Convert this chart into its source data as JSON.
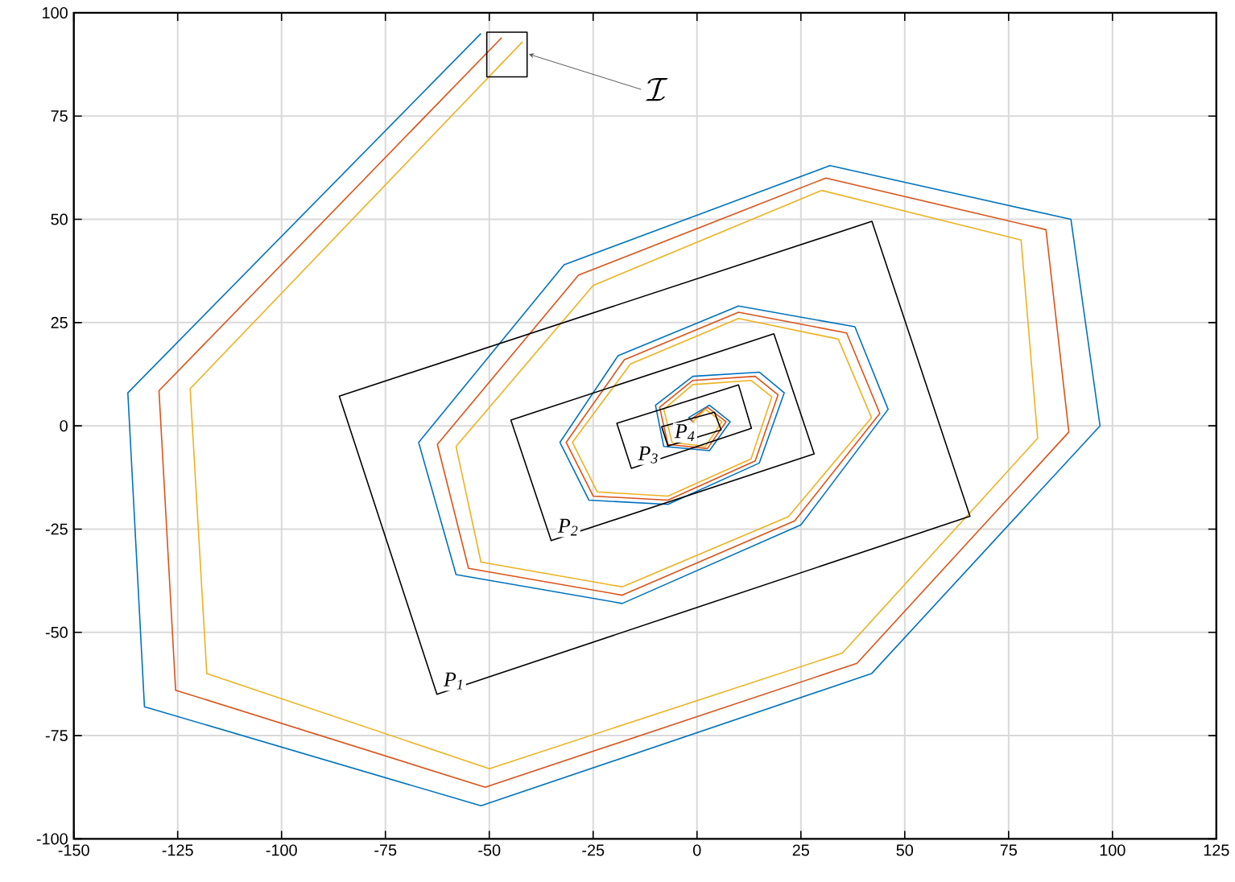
{
  "chart_data": {
    "type": "line",
    "xlim": [
      -150,
      125
    ],
    "ylim": [
      -100,
      100
    ],
    "xticks": [
      -150,
      -125,
      -100,
      -75,
      -50,
      -25,
      0,
      25,
      50,
      75,
      100,
      125
    ],
    "yticks": [
      -100,
      -75,
      -50,
      -25,
      0,
      25,
      50,
      75,
      100
    ],
    "grid": true,
    "series": [
      {
        "color": "#0072bd",
        "x": [
          -52,
          -137,
          -133,
          -52,
          42,
          97,
          90,
          32,
          -32,
          -67,
          -58,
          -18,
          25,
          46,
          38,
          10,
          -19,
          -33,
          -26,
          -7,
          15,
          21,
          15,
          -1,
          -10,
          -8,
          3,
          8,
          3,
          -2,
          0
        ],
        "values": [
          95,
          8,
          -68,
          -92,
          -60,
          0,
          50,
          63,
          39,
          -4,
          -36,
          -43,
          -24,
          4,
          24,
          29,
          17,
          -4,
          -18,
          -19,
          -9,
          8,
          13,
          12,
          5,
          -5,
          -6,
          1,
          5,
          2,
          0
        ]
      },
      {
        "color": "#d95319",
        "x": [
          -47,
          -129.5,
          -125.5,
          -51,
          38.5,
          89.5,
          84,
          31,
          -28.5,
          -62.5,
          -55,
          -18,
          23.5,
          44,
          36,
          10,
          -17.5,
          -31.5,
          -25,
          -7,
          14,
          19.5,
          14,
          -1,
          -9,
          -7,
          2.5,
          7,
          2.5,
          -1.5,
          0
        ],
        "values": [
          94,
          8.5,
          -64,
          -87.5,
          -57.5,
          -1.5,
          47.5,
          60,
          36.5,
          -4.5,
          -34.5,
          -41,
          -23,
          3,
          22.5,
          27.5,
          16,
          -4,
          -17,
          -18,
          -8.5,
          7.5,
          12,
          11,
          4.5,
          -4.5,
          -5.5,
          1,
          4.5,
          1.5,
          0
        ]
      },
      {
        "color": "#edb120",
        "x": [
          -42,
          -122,
          -118,
          -50,
          35,
          82,
          78,
          30,
          -25,
          -58,
          -52,
          -18,
          22,
          42,
          34,
          10,
          -16,
          -30,
          -24,
          -7,
          13,
          18,
          13,
          -1,
          -8,
          -6,
          2,
          6,
          2,
          -1,
          0
        ],
        "values": [
          93,
          9,
          -60,
          -83,
          -55,
          -3,
          45,
          57,
          34,
          -5,
          -33,
          -39,
          -22,
          2,
          21,
          26,
          15,
          -4,
          -16,
          -17,
          -8,
          7,
          11,
          10,
          4,
          -4,
          -5,
          1,
          4,
          1,
          0
        ]
      },
      {
        "name": "P$_{1}$",
        "color": "#000000",
        "x": [
          -62.6,
          65.7,
          42.1,
          -86.1,
          -62.6,
          65.7
        ],
        "values": [
          -65,
          -21.9,
          49.5,
          7.2,
          -65,
          -21.9
        ]
      },
      {
        "name": "P$_{2}$",
        "color": "#000000",
        "x": [
          -35.1,
          28.2,
          18.5,
          -44.8,
          -35.1,
          28.2
        ],
        "values": [
          -27.8,
          -6.8,
          22.3,
          1.4,
          -27.8,
          -6.8
        ]
      },
      {
        "name": "P$_{3}$",
        "color": "#000000",
        "x": [
          -15.8,
          13.1,
          10,
          -19.3,
          -15.8,
          13.1
        ],
        "values": [
          -10.3,
          -0.6,
          9.9,
          0.6,
          -10.3,
          -0.6
        ]
      },
      {
        "name": "P$_{4}$",
        "color": "#000000",
        "x": [
          -7,
          5.8,
          4.2,
          -8.5,
          -7,
          5.8
        ],
        "values": [
          -4.9,
          -1,
          3.3,
          -0.2,
          -4.9,
          -1
        ]
      },
      {
        "color": "#000000",
        "x": [
          -50.6,
          -40.9,
          -40.9,
          -50.6,
          -50.6,
          -40.9
        ],
        "values": [
          84.5,
          84.5,
          95.3,
          95.3,
          84.5,
          84.5
        ]
      }
    ],
    "annotations": [
      {
        "text": "\\mathcal{I}",
        "x": -40.5,
        "y": 90
      }
    ]
  }
}
